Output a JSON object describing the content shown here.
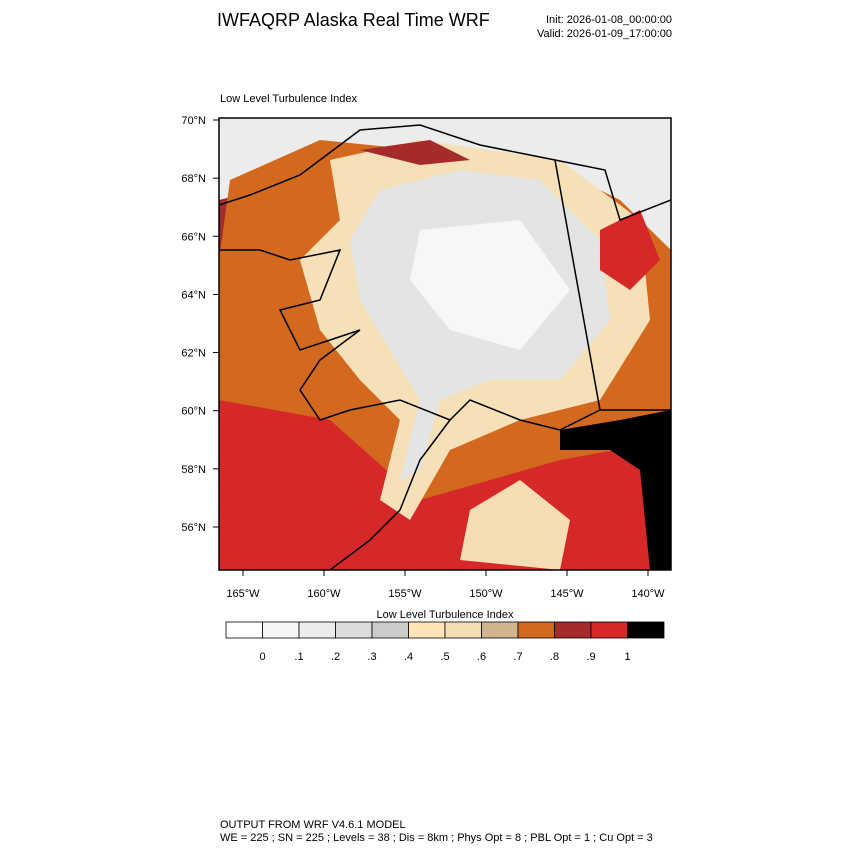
{
  "header": {
    "title": "IWFAQRP Alaska Real Time WRF",
    "init": "Init: 2026-01-08_00:00:00",
    "valid": "Valid: 2026-01-09_17:00:00"
  },
  "map": {
    "label": "Low Level Turbulence Index",
    "lat_ticks": [
      {
        "value": 70,
        "label": "70°N"
      },
      {
        "value": 68,
        "label": "68°N"
      },
      {
        "value": 66,
        "label": "66°N"
      },
      {
        "value": 64,
        "label": "64°N"
      },
      {
        "value": 62,
        "label": "62°N"
      },
      {
        "value": 60,
        "label": "60°N"
      },
      {
        "value": 58,
        "label": "58°N"
      },
      {
        "value": 56,
        "label": "56°N"
      }
    ],
    "lon_ticks": [
      {
        "value": -165,
        "label": "165°W"
      },
      {
        "value": -160,
        "label": "160°W"
      },
      {
        "value": -155,
        "label": "155°W"
      },
      {
        "value": -150,
        "label": "150°W"
      },
      {
        "value": -145,
        "label": "145°W"
      },
      {
        "value": -140,
        "label": "140°W"
      }
    ]
  },
  "colorbar": {
    "title": "Low Level Turbulence Index",
    "colors": [
      "#ffffff",
      "#f6f6f6",
      "#ececec",
      "#dcdcdc",
      "#cccccc",
      "#ffe4b5",
      "#f5deb3",
      "#d2b48c",
      "#d2691e",
      "#a52a2a",
      "#d62828",
      "#000000"
    ],
    "levels": [
      0,
      {
        "value": 0.1,
        "label": ".1"
      },
      {
        "value": 0.2,
        "label": ".2"
      },
      {
        "value": 0.3,
        "label": ".3"
      },
      {
        "value": 0.4,
        "label": ".4"
      },
      {
        "value": 0.5,
        "label": ".5"
      },
      {
        "value": 0.6,
        "label": ".6"
      },
      {
        "value": 0.7,
        "label": ".7"
      },
      {
        "value": 0.8,
        "label": ".8"
      },
      {
        "value": 0.9,
        "label": ".9"
      },
      1
    ]
  },
  "footer": {
    "line1": "OUTPUT FROM WRF V4.6.1 MODEL",
    "line2": "WE = 225 ; SN = 225 ; Levels = 38 ; Dis = 8km ; Phys Opt = 8 ; PBL Opt = 1 ; Cu Opt = 3"
  }
}
